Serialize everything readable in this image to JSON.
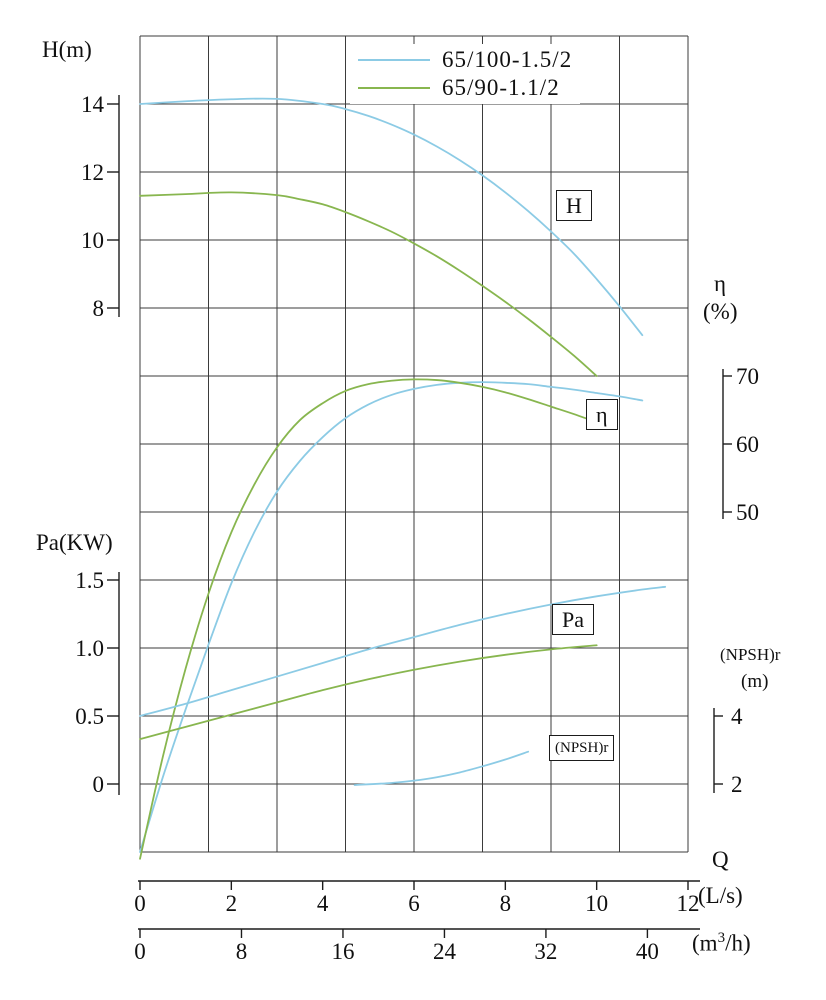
{
  "chart_data": {
    "type": "line",
    "legend": [
      {
        "label": "65/100-1.5/2",
        "color": "#8ccbe5"
      },
      {
        "label": "65/90-1.1/2",
        "color": "#88b64f"
      }
    ],
    "x_axis": {
      "label": "Q",
      "units": [
        {
          "label": "(L/s)",
          "ticks": [
            0,
            2,
            4,
            6,
            8,
            10,
            12
          ]
        },
        {
          "label_parts": [
            "(m",
            "3",
            "/h)"
          ],
          "ticks": [
            0,
            8,
            16,
            24,
            32,
            40
          ],
          "m3h_per_ls": 3.6
        }
      ]
    },
    "y_axes": {
      "H": {
        "title": "H(m)",
        "ticks": [
          "14",
          "12",
          "10",
          "8"
        ],
        "side": "left"
      },
      "eta": {
        "title": "η",
        "unit": "(%)",
        "ticks": [
          "70",
          "60",
          "50"
        ],
        "side": "right"
      },
      "Pa": {
        "title": "Pa(KW)",
        "ticks": [
          "1.5",
          "1.0",
          "0.5",
          "0"
        ],
        "side": "left"
      },
      "NPSH": {
        "title": "(NPSH)r",
        "unit": "(m)",
        "ticks": [
          "4",
          "2"
        ],
        "side": "right"
      }
    },
    "curve_labels": {
      "H": "H",
      "eta": "η",
      "Pa": "Pa",
      "NPSH": "(NPSH)r"
    },
    "series": [
      {
        "name": "Head 65/100-1.5/2",
        "axis": "H",
        "color": "#8ccbe5",
        "points": [
          [
            0,
            14.0
          ],
          [
            1,
            14.08
          ],
          [
            2,
            14.14
          ],
          [
            3,
            14.15
          ],
          [
            4,
            14.0
          ],
          [
            4.5,
            13.85
          ],
          [
            5,
            13.65
          ],
          [
            5.5,
            13.4
          ],
          [
            6,
            13.1
          ],
          [
            6.5,
            12.75
          ],
          [
            7,
            12.35
          ],
          [
            7.5,
            11.9
          ],
          [
            8,
            11.4
          ],
          [
            8.5,
            10.85
          ],
          [
            9,
            10.25
          ],
          [
            9.5,
            9.6
          ],
          [
            10,
            8.85
          ],
          [
            10.5,
            8.05
          ],
          [
            11,
            7.2
          ]
        ]
      },
      {
        "name": "Head 65/90-1.1/2",
        "axis": "H",
        "color": "#88b64f",
        "points": [
          [
            0,
            11.3
          ],
          [
            1,
            11.35
          ],
          [
            2,
            11.4
          ],
          [
            3,
            11.32
          ],
          [
            3.5,
            11.2
          ],
          [
            4,
            11.05
          ],
          [
            4.5,
            10.82
          ],
          [
            5,
            10.55
          ],
          [
            5.5,
            10.25
          ],
          [
            6,
            9.9
          ],
          [
            6.5,
            9.52
          ],
          [
            7,
            9.1
          ],
          [
            7.5,
            8.65
          ],
          [
            8,
            8.18
          ],
          [
            8.5,
            7.68
          ],
          [
            9,
            7.15
          ],
          [
            9.5,
            6.6
          ],
          [
            10,
            6.0
          ]
        ]
      },
      {
        "name": "Efficiency 65/100-1.5/2",
        "axis": "eta",
        "color": "#8ccbe5",
        "points": [
          [
            0,
            0
          ],
          [
            0.5,
            11
          ],
          [
            1,
            21
          ],
          [
            1.5,
            30.5
          ],
          [
            2,
            39.5
          ],
          [
            2.5,
            47
          ],
          [
            3,
            53
          ],
          [
            3.5,
            57.5
          ],
          [
            4,
            61
          ],
          [
            4.5,
            63.8
          ],
          [
            5,
            65.8
          ],
          [
            5.5,
            67.2
          ],
          [
            6,
            68.1
          ],
          [
            6.5,
            68.7
          ],
          [
            7,
            69.0
          ],
          [
            7.5,
            69.1
          ],
          [
            8,
            69.0
          ],
          [
            8.5,
            68.8
          ],
          [
            9,
            68.4
          ],
          [
            9.5,
            68.0
          ],
          [
            10,
            67.5
          ],
          [
            10.5,
            67.0
          ],
          [
            11,
            66.4
          ]
        ]
      },
      {
        "name": "Efficiency 65/90-1.1/2",
        "axis": "eta",
        "color": "#88b64f",
        "points": [
          [
            0,
            -1
          ],
          [
            0.5,
            14
          ],
          [
            1,
            27
          ],
          [
            1.5,
            38
          ],
          [
            2,
            47
          ],
          [
            2.5,
            54
          ],
          [
            3,
            59.5
          ],
          [
            3.5,
            63.5
          ],
          [
            4,
            66
          ],
          [
            4.5,
            67.8
          ],
          [
            5,
            68.8
          ],
          [
            5.5,
            69.3
          ],
          [
            6,
            69.5
          ],
          [
            6.5,
            69.4
          ],
          [
            7,
            69.0
          ],
          [
            7.5,
            68.4
          ],
          [
            8,
            67.6
          ],
          [
            8.5,
            66.6
          ],
          [
            9,
            65.5
          ],
          [
            9.5,
            64.4
          ],
          [
            10,
            63.2
          ]
        ]
      },
      {
        "name": "Power 65/100-1.5/2",
        "axis": "Pa",
        "color": "#8ccbe5",
        "points": [
          [
            0,
            0.5
          ],
          [
            1,
            0.59
          ],
          [
            2,
            0.69
          ],
          [
            3,
            0.79
          ],
          [
            4,
            0.89
          ],
          [
            5,
            0.99
          ],
          [
            6,
            1.08
          ],
          [
            7,
            1.17
          ],
          [
            8,
            1.25
          ],
          [
            9,
            1.32
          ],
          [
            10,
            1.38
          ],
          [
            11,
            1.43
          ],
          [
            11.5,
            1.45
          ]
        ]
      },
      {
        "name": "Power 65/90-1.1/2",
        "axis": "Pa",
        "color": "#88b64f",
        "points": [
          [
            0,
            0.33
          ],
          [
            1,
            0.42
          ],
          [
            2,
            0.51
          ],
          [
            3,
            0.6
          ],
          [
            4,
            0.69
          ],
          [
            5,
            0.77
          ],
          [
            6,
            0.84
          ],
          [
            7,
            0.9
          ],
          [
            8,
            0.95
          ],
          [
            9,
            0.99
          ],
          [
            10,
            1.02
          ]
        ]
      },
      {
        "name": "NPSHr 65/100-1.5/2",
        "axis": "NPSH",
        "color": "#8ccbe5",
        "points": [
          [
            4.7,
            1.97
          ],
          [
            5.5,
            2.03
          ],
          [
            6,
            2.1
          ],
          [
            6.5,
            2.2
          ],
          [
            7,
            2.34
          ],
          [
            7.5,
            2.52
          ],
          [
            8,
            2.72
          ],
          [
            8.5,
            2.95
          ]
        ]
      }
    ]
  },
  "colors": {
    "grid": "#3b3b3b",
    "axis": "#1c1c1c",
    "text": "#101010",
    "background": "#ffffff"
  }
}
